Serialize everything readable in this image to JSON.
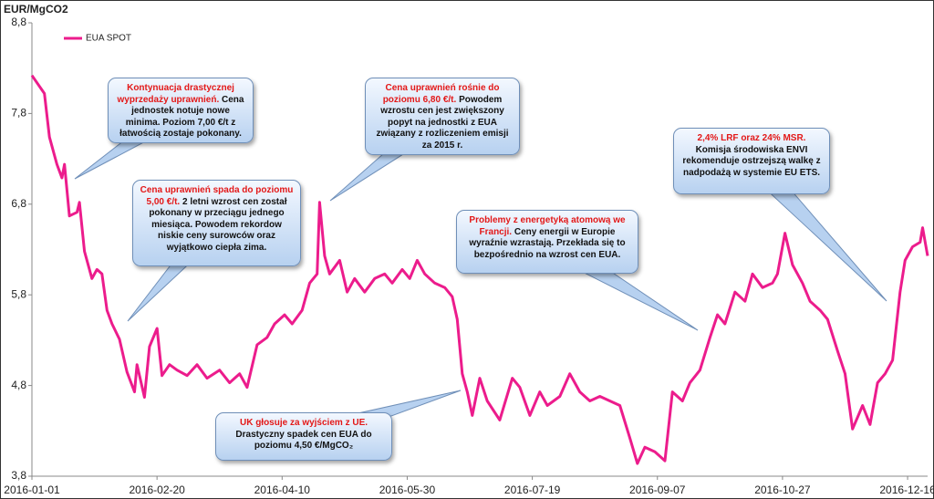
{
  "chart_data": {
    "type": "line",
    "y_label": "EUR/MgCO2",
    "x": [
      "2016-01-01",
      "2016-01-06",
      "2016-01-08",
      "2016-01-11",
      "2016-01-13",
      "2016-01-14",
      "2016-01-16",
      "2016-01-19",
      "2016-01-20",
      "2016-01-22",
      "2016-01-25",
      "2016-01-27",
      "2016-01-29",
      "2016-01-31",
      "2016-02-02",
      "2016-02-05",
      "2016-02-08",
      "2016-02-11",
      "2016-02-12",
      "2016-02-15",
      "2016-02-17",
      "2016-02-20",
      "2016-02-22",
      "2016-02-25",
      "2016-02-28",
      "2016-03-03",
      "2016-03-07",
      "2016-03-11",
      "2016-03-16",
      "2016-03-20",
      "2016-03-24",
      "2016-03-27",
      "2016-03-31",
      "2016-04-04",
      "2016-04-07",
      "2016-04-11",
      "2016-04-14",
      "2016-04-18",
      "2016-04-21",
      "2016-04-24",
      "2016-04-25",
      "2016-04-27",
      "2016-04-29",
      "2016-05-03",
      "2016-05-06",
      "2016-05-09",
      "2016-05-13",
      "2016-05-17",
      "2016-05-21",
      "2016-05-24",
      "2016-05-28",
      "2016-05-31",
      "2016-06-03",
      "2016-06-06",
      "2016-06-10",
      "2016-06-14",
      "2016-06-17",
      "2016-06-19",
      "2016-06-21",
      "2016-06-23",
      "2016-06-25",
      "2016-06-28",
      "2016-07-01",
      "2016-07-06",
      "2016-07-11",
      "2016-07-14",
      "2016-07-18",
      "2016-07-22",
      "2016-07-25",
      "2016-07-30",
      "2016-08-03",
      "2016-08-07",
      "2016-08-11",
      "2016-08-15",
      "2016-08-19",
      "2016-08-23",
      "2016-08-27",
      "2016-08-30",
      "2016-09-02",
      "2016-09-06",
      "2016-09-10",
      "2016-09-13",
      "2016-09-17",
      "2016-09-20",
      "2016-09-24",
      "2016-09-28",
      "2016-10-01",
      "2016-10-04",
      "2016-10-08",
      "2016-10-12",
      "2016-10-15",
      "2016-10-19",
      "2016-10-23",
      "2016-10-25",
      "2016-10-28",
      "2016-10-31",
      "2016-11-04",
      "2016-11-07",
      "2016-11-11",
      "2016-11-14",
      "2016-11-18",
      "2016-11-21",
      "2016-11-24",
      "2016-11-28",
      "2016-12-01",
      "2016-12-04",
      "2016-12-07",
      "2016-12-10",
      "2016-12-13",
      "2016-12-15",
      "2016-12-18",
      "2016-12-21",
      "2016-12-22",
      "2016-12-24"
    ],
    "series": [
      {
        "name": "EUA SPOT",
        "color": "#ec1c8c",
        "values": [
          8.22,
          8.02,
          7.54,
          7.24,
          7.09,
          7.24,
          6.67,
          6.71,
          6.82,
          6.28,
          5.98,
          6.08,
          6.03,
          5.63,
          5.48,
          5.31,
          4.95,
          4.73,
          5.03,
          4.67,
          5.23,
          5.43,
          4.91,
          5.03,
          4.97,
          4.91,
          5.03,
          4.88,
          4.97,
          4.83,
          4.93,
          4.78,
          5.25,
          5.33,
          5.48,
          5.58,
          5.48,
          5.63,
          5.93,
          6.03,
          6.82,
          6.23,
          6.03,
          6.18,
          5.83,
          5.98,
          5.83,
          5.98,
          6.03,
          5.93,
          6.08,
          5.98,
          6.18,
          6.03,
          5.93,
          5.88,
          5.78,
          5.53,
          4.93,
          4.73,
          4.47,
          4.88,
          4.63,
          4.42,
          4.88,
          4.78,
          4.47,
          4.73,
          4.58,
          4.68,
          4.93,
          4.73,
          4.63,
          4.68,
          4.63,
          4.58,
          4.22,
          3.94,
          4.12,
          4.07,
          3.97,
          4.73,
          4.63,
          4.83,
          4.97,
          5.33,
          5.58,
          5.48,
          5.83,
          5.73,
          6.03,
          5.88,
          5.93,
          6.03,
          6.48,
          6.13,
          5.93,
          5.73,
          5.63,
          5.53,
          5.18,
          4.93,
          4.32,
          4.58,
          4.37,
          4.83,
          4.93,
          5.08,
          5.83,
          6.18,
          6.33,
          6.38,
          6.54,
          6.23
        ]
      }
    ],
    "xlim": [
      "2016-01-01",
      "2016-12-24"
    ],
    "xticks": [
      "2016-01-01",
      "2016-02-20",
      "2016-04-10",
      "2016-05-30",
      "2016-07-19",
      "2016-09-07",
      "2016-10-27",
      "2016-12-16"
    ],
    "ylim": [
      3.8,
      8.8
    ],
    "yticks": [
      {
        "value": 3.8,
        "label": "3,8"
      },
      {
        "value": 4.8,
        "label": "4,8"
      },
      {
        "value": 5.8,
        "label": "5,8"
      },
      {
        "value": 6.8,
        "label": "6,8"
      },
      {
        "value": 7.8,
        "label": "7,8"
      },
      {
        "value": 8.8,
        "label": "8,8"
      }
    ],
    "legend": "top-left",
    "annotations": [
      {
        "highlight": "Kontynuacja drastycznej wyprzedaży uprawnień.",
        "text": "Cena jednostek notuje nowe minima. Poziom 7,00 €/t z łatwością zostaje pokonany."
      },
      {
        "highlight": "Cena uprawnień spada do poziomu 5,00 €/t.",
        "text": "2 letni wzrost cen został pokonany w przeciągu jednego miesiąca. Powodem rekordow niskie ceny surowców oraz wyjątkowo ciepła zima."
      },
      {
        "highlight": "Cena uprawnień rośnie do poziomu 6,80 €/t.",
        "text": "Powodem wzrostu cen jest zwiększony popyt na jednostki z EUA związany z rozliczeniem emisji za 2015 r."
      },
      {
        "highlight": "Problemy z energetyką atomową we Francji.",
        "text": "Ceny energii w Europie wyraźnie wzrastają. Przekłada się to bezpośrednio na wzrost cen EUA."
      },
      {
        "highlight": "2,4% LRF oraz 24% MSR.",
        "text": "Komisja środowiska ENVI rekomenduje ostrzejszą walkę z nadpodażą w systemie EU ETS."
      },
      {
        "highlight": "UK głosuje za wyjściem z UE.",
        "text": "Drastyczny spadek cen EUA do poziomu 4,50 €/MgCO₂"
      }
    ]
  }
}
